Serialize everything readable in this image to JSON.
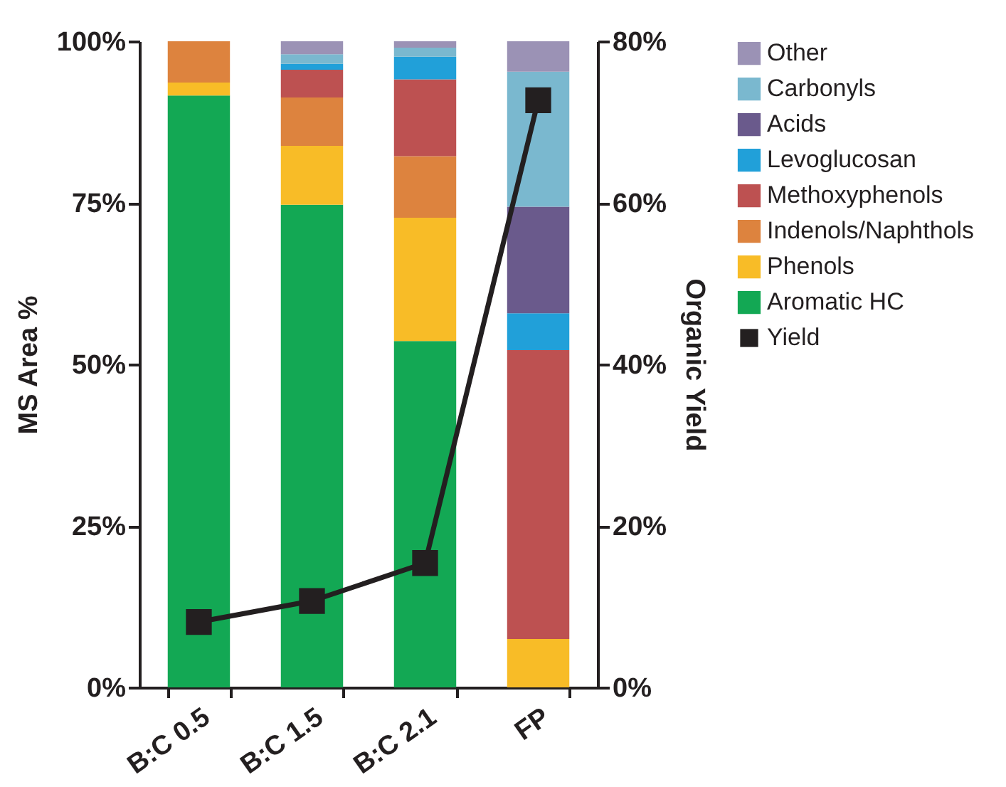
{
  "chart_data": {
    "type": "bar",
    "stacked": true,
    "categories": [
      "B:C 0.5",
      "B:C 1.5",
      "B:C 2.1",
      "FP"
    ],
    "ylabel": "MS Area %",
    "y2label": "Organic Yield",
    "ylim": [
      0,
      100
    ],
    "yticks": [
      {
        "value": 0,
        "label": "0%"
      },
      {
        "value": 25,
        "label": "25%"
      },
      {
        "value": 50,
        "label": "50%"
      },
      {
        "value": 75,
        "label": "75%"
      },
      {
        "value": 100,
        "label": "100%"
      }
    ],
    "y2lim": [
      0,
      80
    ],
    "y2ticks": [
      {
        "value": 0,
        "label": "0%"
      },
      {
        "value": 20,
        "label": "20%"
      },
      {
        "value": 40,
        "label": "40%"
      },
      {
        "value": 60,
        "label": "60%"
      },
      {
        "value": 80,
        "label": "80%"
      }
    ],
    "grid": false,
    "legend": "right",
    "series": [
      {
        "name": "Aromatic HC",
        "color": "#13a854",
        "values": [
          91.6,
          74.7,
          53.6,
          0
        ]
      },
      {
        "name": "Phenols",
        "color": "#f8bc27",
        "values": [
          2.0,
          9.1,
          19.1,
          7.5
        ]
      },
      {
        "name": "Indenols/Naphthols",
        "color": "#dd833e",
        "values": [
          6.4,
          7.5,
          9.5,
          0
        ]
      },
      {
        "name": "Methoxyphenols",
        "color": "#bd5151",
        "values": [
          0,
          4.3,
          11.9,
          44.7
        ]
      },
      {
        "name": "Levoglucosan",
        "color": "#21a0d9",
        "values": [
          0,
          0.9,
          3.5,
          5.7
        ]
      },
      {
        "name": "Acids",
        "color": "#6a5a8c",
        "values": [
          0,
          0,
          0,
          16.5
        ]
      },
      {
        "name": "Carbonyls",
        "color": "#7ab8cf",
        "values": [
          0,
          1.5,
          1.4,
          20.9
        ]
      },
      {
        "name": "Other",
        "color": "#9b92b5",
        "values": [
          0,
          2.0,
          1.0,
          4.7
        ]
      },
      {
        "name": "Yield",
        "color": "#231f20",
        "type": "line",
        "axis": "y2",
        "marker": "square",
        "values": [
          8.1,
          10.7,
          15.4,
          72.7
        ]
      }
    ]
  }
}
